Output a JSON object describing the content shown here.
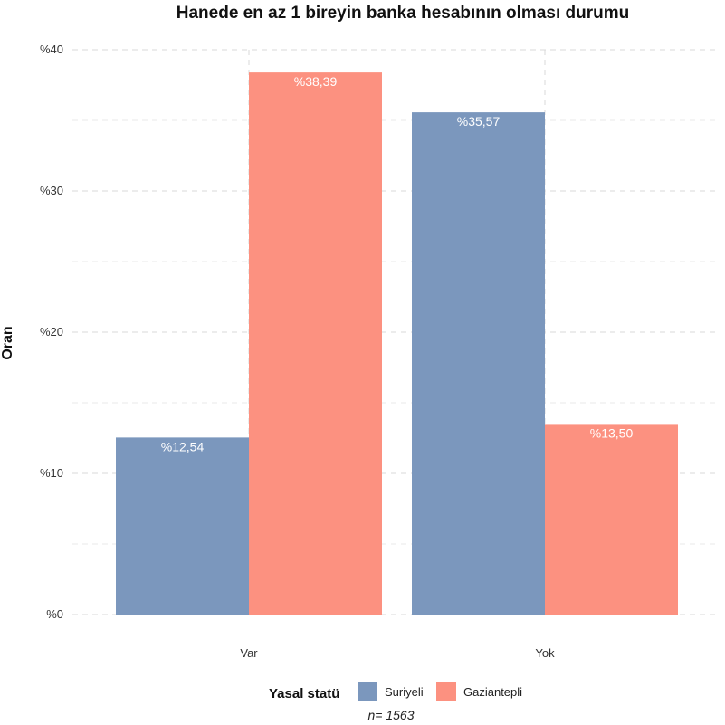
{
  "chart_data": {
    "type": "bar",
    "title": "Hanede en az 1 bireyin banka hesabının olması durumu",
    "xlabel": "",
    "ylabel": "Oran",
    "categories": [
      "Var",
      "Yok"
    ],
    "series": [
      {
        "name": "Suriyeli",
        "values": [
          12.54,
          35.57
        ],
        "labels": [
          "%12,54",
          "%35,57"
        ],
        "color": "#7b97bd"
      },
      {
        "name": "Gaziantepli",
        "values": [
          38.39,
          13.5
        ],
        "labels": [
          "%38,39",
          "%13,50"
        ],
        "color": "#fc9180"
      }
    ],
    "ylim": [
      0,
      40
    ],
    "yticks": [
      0,
      10,
      20,
      30,
      40
    ],
    "ytick_labels": [
      "%0",
      "%10",
      "%20",
      "%30",
      "%40"
    ],
    "grid": true,
    "legend": {
      "title": "Yasal statü",
      "position": "bottom"
    },
    "caption": "n= 1563"
  }
}
